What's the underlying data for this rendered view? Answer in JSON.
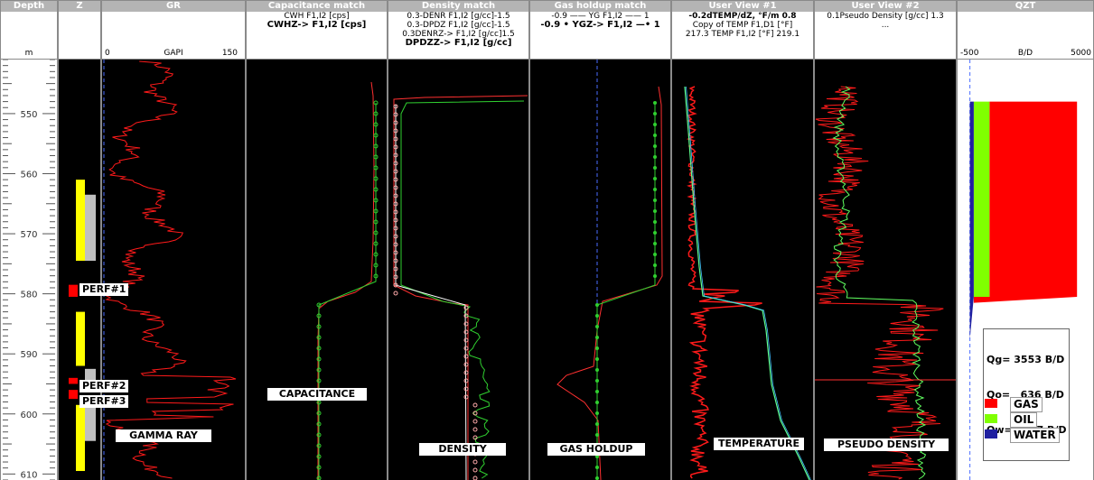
{
  "depth_track": {
    "title": "Depth",
    "unit": "m",
    "ticks": [
      "550",
      "560",
      "570",
      "580",
      "590",
      "600",
      "610"
    ]
  },
  "zone_track": {
    "title": "Z",
    "perf_labels": [
      "PERF#1",
      "PERF#2",
      "PERF#3"
    ]
  },
  "gr_track": {
    "title": "GR",
    "scale_min": "0",
    "scale_unit": "GAPI",
    "scale_max": "150",
    "label": "GAMMA RAY"
  },
  "cap_track": {
    "title": "Capacitance match",
    "line1": "CWH  F1,I2 [cps]",
    "line2": "CWHZ->  F1,I2 [cps]",
    "label": "CAPACITANCE"
  },
  "den_track": {
    "title": "Density match",
    "line1": "0.3-DENR  F1,I2 [g/cc]-1.5",
    "line2": "0.3-DPDZ  F1,I2 [g/cc]-1.5",
    "line3": "0.3DENRZ->  F1,I2 [g/cc]1.5",
    "line4": "DPDZZ->  F1,I2 [g/cc]",
    "label": "DENSITY"
  },
  "gh_track": {
    "title": "Gas holdup match",
    "line1": "-0.9 —— YG  F1,I2 —— 1",
    "line2": "-0.9 • YGZ->  F1,I2 —• 1",
    "label": "GAS HOLDUP"
  },
  "uv1_track": {
    "title": "User View #1",
    "line1": "-0.2dTEMP/dZ, °F/m 0.8",
    "line2": "Copy of TEMP  F1,D1 [°F]",
    "line3": "217.3 TEMP  F1,I2 [°F] 219.1",
    "label": "TEMPERATURE"
  },
  "uv2_track": {
    "title": "User View #2",
    "line1": "0.1Pseudo Density [g/cc] 1.3",
    "line2": "...",
    "label": "PSEUDO DENSITY"
  },
  "qzt_track": {
    "title": "QZT",
    "scale_min": "-500",
    "scale_unit": "B/D",
    "scale_max": "5000",
    "rates": [
      "Qg= 3553 B/D",
      "Qo=   636 B/D",
      "Qw=   157 B/D"
    ],
    "legend": [
      {
        "name": "GAS",
        "color": "#ff0000"
      },
      {
        "name": "OIL",
        "color": "#80ff00"
      },
      {
        "name": "WATER",
        "color": "#2020a0"
      }
    ]
  },
  "chart_data": {
    "type": "line",
    "depth_range_m": [
      541,
      611
    ],
    "zones": [
      {
        "type": "yellow",
        "top": 561,
        "bottom": 574.5
      },
      {
        "type": "grey",
        "top": 563.5,
        "bottom": 574.5
      },
      {
        "type": "red",
        "top": 578.5,
        "bottom": 580.5
      },
      {
        "type": "yellow",
        "top": 583,
        "bottom": 592
      },
      {
        "type": "grey",
        "top": 592.5,
        "bottom": 595.5
      },
      {
        "type": "red",
        "top": 594,
        "bottom": 595
      },
      {
        "type": "red",
        "top": 596,
        "bottom": 597.5
      },
      {
        "type": "yellow",
        "top": 598.5,
        "bottom": 609.5
      },
      {
        "type": "grey",
        "top": 598.5,
        "bottom": 604.5
      }
    ],
    "flow_profile": {
      "depths": [
        548,
        580.5,
        581.5
      ],
      "qw": [
        157,
        157,
        0
      ],
      "qo": [
        636,
        636,
        0
      ],
      "qg": [
        3553,
        3553,
        0
      ]
    }
  }
}
